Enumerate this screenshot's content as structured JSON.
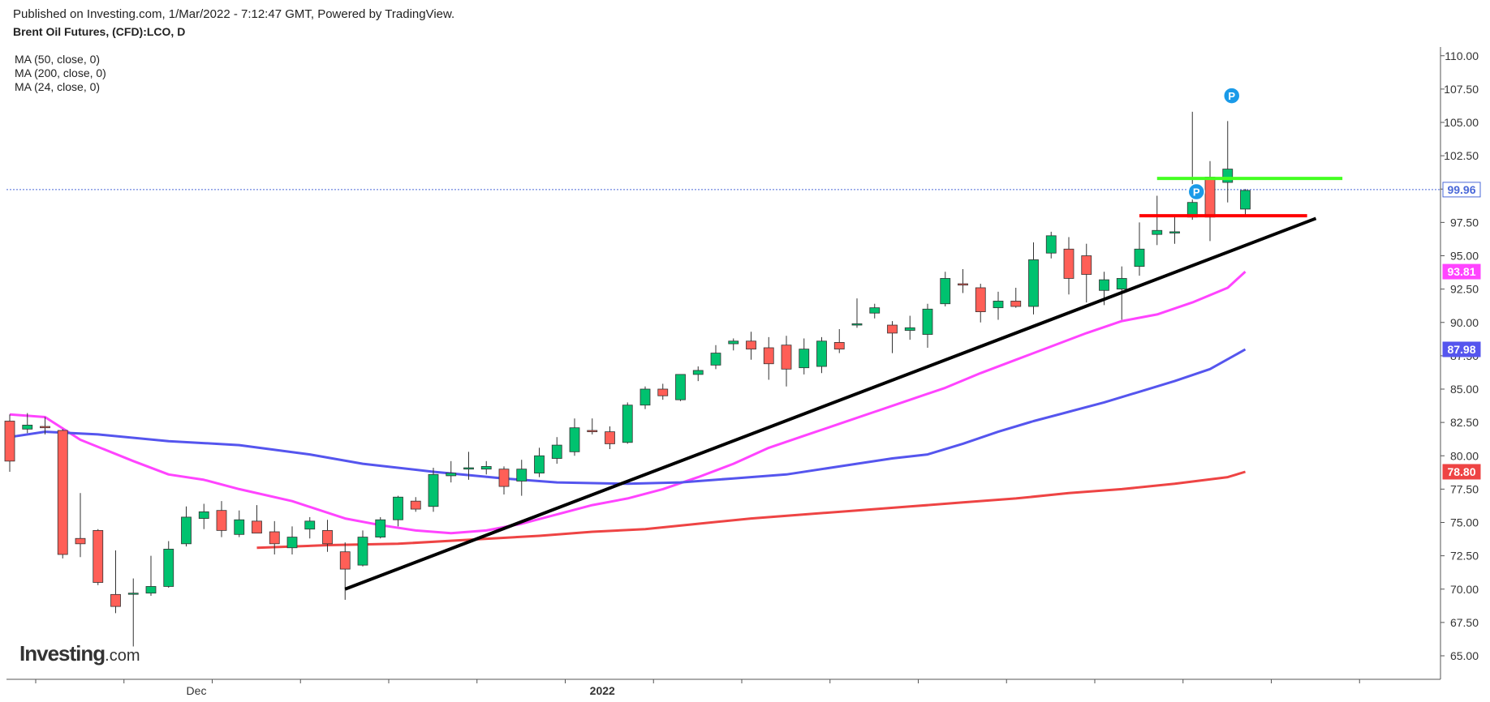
{
  "header": {
    "published": "Published on Investing.com, 1/Mar/2022 - 7:12:47 GMT, Powered by TradingView.",
    "symbol": "Brent Oil Futures, (CFD):LCO, D"
  },
  "indicators": [
    "MA (50, close, 0)",
    "MA (200, close, 0)",
    "MA (24, close, 0)"
  ],
  "logo": {
    "main": "Investing",
    "suffix": ".com"
  },
  "colors": {
    "up": "#00c26f",
    "down": "#ff5f57",
    "ma24": "#ff44ff",
    "ma50": "#5555ee",
    "ma200": "#ee4444",
    "trendline": "#000000",
    "resistance": "#44ff22",
    "support": "#ff0000",
    "current_price_line": "#4a68d8"
  },
  "chart_data": {
    "type": "candlestick",
    "title": "Brent Oil Futures, (CFD):LCO, D",
    "xlabel": "",
    "ylabel": "",
    "ylim": [
      64.0,
      111.0
    ],
    "y_ticks": [
      "65.00",
      "67.50",
      "70.00",
      "72.50",
      "75.00",
      "77.50",
      "80.00",
      "82.50",
      "85.00",
      "87.50",
      "90.00",
      "92.50",
      "95.00",
      "97.50",
      "100.00",
      "102.50",
      "105.00",
      "107.50",
      "110.00"
    ],
    "x_labels": [
      {
        "label": "Dec",
        "bar": 12
      },
      {
        "label": "2022",
        "bar": 35
      }
    ],
    "grid": false,
    "last_price": {
      "value": 99.96,
      "label": "99.96"
    },
    "candles": [
      [
        82.6,
        83.1,
        78.8,
        79.6
      ],
      [
        82.0,
        83.2,
        81.7,
        82.3
      ],
      [
        82.2,
        82.9,
        81.6,
        82.1
      ],
      [
        81.9,
        82.0,
        72.3,
        72.6
      ],
      [
        73.8,
        77.2,
        72.4,
        73.4
      ],
      [
        74.4,
        74.5,
        70.3,
        70.5
      ],
      [
        69.6,
        72.9,
        68.2,
        68.7
      ],
      [
        69.7,
        70.8,
        65.7,
        69.7
      ],
      [
        69.7,
        72.5,
        69.5,
        70.2
      ],
      [
        70.2,
        73.6,
        70.1,
        73.0
      ],
      [
        73.4,
        76.2,
        73.2,
        75.4
      ],
      [
        75.3,
        76.4,
        74.5,
        75.8
      ],
      [
        75.9,
        76.6,
        73.9,
        74.4
      ],
      [
        74.1,
        75.9,
        73.9,
        75.2
      ],
      [
        75.1,
        76.3,
        74.2,
        74.2
      ],
      [
        74.3,
        75.1,
        72.6,
        73.4
      ],
      [
        73.1,
        74.7,
        72.6,
        73.9
      ],
      [
        74.5,
        75.4,
        73.8,
        75.1
      ],
      [
        74.4,
        75.2,
        72.8,
        73.4
      ],
      [
        72.8,
        73.5,
        69.2,
        71.5
      ],
      [
        71.8,
        74.4,
        71.7,
        73.9
      ],
      [
        73.9,
        75.4,
        73.8,
        75.2
      ],
      [
        75.2,
        77.0,
        74.7,
        76.9
      ],
      [
        76.6,
        76.9,
        75.8,
        76.0
      ],
      [
        76.2,
        79.1,
        75.8,
        78.6
      ],
      [
        78.5,
        79.6,
        78.0,
        78.7
      ],
      [
        79.0,
        80.3,
        78.2,
        79.1
      ],
      [
        79.0,
        79.6,
        78.6,
        79.2
      ],
      [
        79.0,
        79.2,
        77.1,
        77.7
      ],
      [
        78.1,
        79.7,
        77.0,
        79.0
      ],
      [
        78.7,
        80.6,
        78.4,
        80.0
      ],
      [
        79.8,
        81.4,
        79.4,
        80.8
      ],
      [
        80.3,
        82.8,
        80.0,
        82.1
      ],
      [
        81.9,
        82.8,
        81.6,
        81.8
      ],
      [
        81.8,
        82.2,
        80.5,
        80.9
      ],
      [
        81.0,
        84.0,
        80.9,
        83.8
      ],
      [
        83.8,
        85.2,
        83.5,
        85.0
      ],
      [
        85.0,
        85.4,
        84.2,
        84.5
      ],
      [
        84.2,
        86.1,
        84.1,
        86.1
      ],
      [
        86.1,
        86.7,
        85.6,
        86.4
      ],
      [
        86.8,
        88.3,
        86.5,
        87.7
      ],
      [
        88.4,
        88.8,
        87.9,
        88.6
      ],
      [
        88.6,
        89.3,
        87.2,
        88.0
      ],
      [
        88.1,
        88.9,
        85.7,
        86.9
      ],
      [
        88.3,
        89.0,
        85.2,
        86.5
      ],
      [
        86.6,
        88.8,
        86.1,
        88.0
      ],
      [
        86.7,
        88.9,
        86.2,
        88.6
      ],
      [
        88.5,
        89.5,
        87.7,
        88.0
      ],
      [
        89.8,
        91.8,
        89.6,
        89.9
      ],
      [
        90.7,
        91.4,
        90.3,
        91.1
      ],
      [
        89.8,
        90.1,
        87.7,
        89.2
      ],
      [
        89.4,
        90.5,
        88.7,
        89.6
      ],
      [
        89.1,
        91.4,
        88.1,
        91.0
      ],
      [
        91.4,
        93.8,
        91.2,
        93.3
      ],
      [
        92.9,
        94.0,
        92.2,
        92.8
      ],
      [
        92.6,
        92.9,
        90.0,
        90.8
      ],
      [
        91.1,
        92.3,
        90.2,
        91.6
      ],
      [
        91.6,
        92.6,
        91.1,
        91.2
      ],
      [
        91.2,
        96.0,
        90.6,
        94.7
      ],
      [
        95.2,
        96.8,
        94.8,
        96.5
      ],
      [
        95.5,
        96.4,
        92.1,
        93.3
      ],
      [
        95.0,
        95.9,
        91.5,
        93.6
      ],
      [
        92.4,
        93.8,
        91.3,
        93.2
      ],
      [
        92.5,
        94.2,
        90.2,
        93.3
      ],
      [
        94.2,
        97.5,
        93.5,
        95.5
      ],
      [
        96.6,
        99.5,
        95.8,
        96.9
      ],
      [
        96.7,
        98.0,
        95.9,
        96.8
      ],
      [
        97.9,
        105.8,
        97.7,
        99.0
      ],
      [
        100.9,
        102.1,
        96.1,
        97.9
      ],
      [
        100.5,
        105.1,
        99.0,
        101.5
      ],
      [
        98.5,
        100.0,
        98.0,
        99.9
      ]
    ],
    "series": [
      {
        "name": "MA (24, close, 0)",
        "color": "#ff44ff",
        "last": 93.81,
        "label": "93.81",
        "points": [
          [
            0,
            83.1
          ],
          [
            2,
            82.9
          ],
          [
            4,
            81.2
          ],
          [
            7,
            79.6
          ],
          [
            9,
            78.6
          ],
          [
            11,
            78.2
          ],
          [
            13,
            77.5
          ],
          [
            16,
            76.6
          ],
          [
            19,
            75.3
          ],
          [
            21,
            74.8
          ],
          [
            23,
            74.4
          ],
          [
            25,
            74.2
          ],
          [
            27,
            74.4
          ],
          [
            29,
            74.9
          ],
          [
            31,
            75.6
          ],
          [
            33,
            76.3
          ],
          [
            35,
            76.8
          ],
          [
            37,
            77.5
          ],
          [
            39,
            78.4
          ],
          [
            41,
            79.4
          ],
          [
            43,
            80.6
          ],
          [
            45,
            81.5
          ],
          [
            47,
            82.4
          ],
          [
            49,
            83.3
          ],
          [
            51,
            84.2
          ],
          [
            53,
            85.1
          ],
          [
            55,
            86.2
          ],
          [
            57,
            87.2
          ],
          [
            59,
            88.2
          ],
          [
            61,
            89.2
          ],
          [
            63,
            90.1
          ],
          [
            65,
            90.6
          ],
          [
            67,
            91.5
          ],
          [
            69,
            92.6
          ],
          [
            70,
            93.81
          ]
        ]
      },
      {
        "name": "MA (50, close, 0)",
        "color": "#5555ee",
        "last": 87.98,
        "label": "87.98",
        "points": [
          [
            0,
            81.4
          ],
          [
            2,
            81.8
          ],
          [
            5,
            81.6
          ],
          [
            9,
            81.1
          ],
          [
            13,
            80.8
          ],
          [
            17,
            80.1
          ],
          [
            20,
            79.4
          ],
          [
            24,
            78.8
          ],
          [
            28,
            78.3
          ],
          [
            31,
            78.0
          ],
          [
            35,
            77.9
          ],
          [
            38,
            78.0
          ],
          [
            41,
            78.3
          ],
          [
            44,
            78.6
          ],
          [
            47,
            79.2
          ],
          [
            50,
            79.8
          ],
          [
            52,
            80.1
          ],
          [
            54,
            80.9
          ],
          [
            56,
            81.8
          ],
          [
            58,
            82.6
          ],
          [
            60,
            83.3
          ],
          [
            62,
            84.0
          ],
          [
            64,
            84.8
          ],
          [
            66,
            85.6
          ],
          [
            68,
            86.5
          ],
          [
            70,
            87.98
          ]
        ]
      },
      {
        "name": "MA (200, close, 0)",
        "color": "#ee4444",
        "last": 78.8,
        "label": "78.80",
        "points": [
          [
            14,
            73.1
          ],
          [
            18,
            73.3
          ],
          [
            22,
            73.4
          ],
          [
            26,
            73.7
          ],
          [
            30,
            74.0
          ],
          [
            33,
            74.3
          ],
          [
            36,
            74.5
          ],
          [
            39,
            74.9
          ],
          [
            42,
            75.3
          ],
          [
            45,
            75.6
          ],
          [
            48,
            75.9
          ],
          [
            51,
            76.2
          ],
          [
            54,
            76.5
          ],
          [
            57,
            76.8
          ],
          [
            60,
            77.2
          ],
          [
            63,
            77.5
          ],
          [
            66,
            77.9
          ],
          [
            69,
            78.4
          ],
          [
            70,
            78.8
          ]
        ]
      }
    ],
    "drawings": {
      "trendline": {
        "from": [
          19,
          70.0
        ],
        "to": [
          74,
          97.8
        ]
      },
      "resistance": {
        "from": [
          65.0,
          100.8
        ],
        "to": [
          75.5,
          100.8
        ]
      },
      "support": {
        "from": [
          64.0,
          98.0
        ],
        "to": [
          73.5,
          98.0
        ]
      }
    },
    "markers": [
      {
        "text": "P",
        "bar": 67,
        "value": 99.8
      },
      {
        "text": "P",
        "bar": 69,
        "value": 107.0
      }
    ]
  }
}
